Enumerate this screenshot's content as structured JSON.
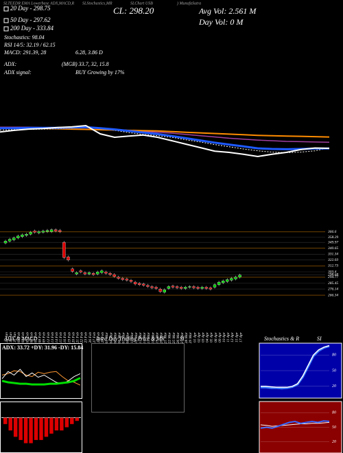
{
  "chart_data": [
    {
      "type": "line",
      "annotations": [
        "SLTEEDR EMA Lowerbase ADX,MACD,R",
        "SLStochastics,MR",
        "SLChart USB",
        ") MunafaSutra",
        "CL: 298.20",
        "Avg Vol: 2.561 M",
        "Day Vol: 0   M",
        "20 Day - 298.75",
        "50 Day - 297.62",
        "200 Day - 333.84",
        "Stochastics: 98.04",
        "RSI 14/5: 32.19 / 62.15",
        "MACD: 291.39, 28",
        "6.28, 3.86  D",
        "ADX:",
        "(MGB) 33.7, 32, 15.8",
        "ADX signal:",
        "BUY Growing by 17%"
      ],
      "ylim": [
        224,
        442
      ],
      "series": [
        {
          "color": "#a040a0",
          "width": 1.5,
          "values": [
            365,
            365,
            365,
            364,
            364,
            363,
            363,
            361,
            358,
            355,
            352,
            349,
            346,
            342,
            338,
            334,
            330,
            327,
            324,
            322,
            320,
            319,
            318,
            317
          ]
        },
        {
          "color": "#ff8c00",
          "width": 2,
          "values": [
            362,
            362,
            361,
            361,
            360,
            359,
            358,
            357,
            356,
            355,
            354,
            353,
            351,
            349,
            347,
            345,
            343,
            341,
            339,
            338,
            337,
            336,
            335,
            333.84
          ]
        },
        {
          "color": "#ffffff",
          "width": 1,
          "dash": true,
          "values": [
            356,
            357,
            358,
            359,
            360,
            362,
            364,
            362,
            355,
            348,
            342,
            338,
            333,
            325,
            318,
            310,
            303,
            296,
            290,
            286,
            284,
            286,
            290,
            298.75
          ]
        },
        {
          "color": "#1e5aff",
          "width": 3,
          "values": [
            362,
            362,
            363,
            363,
            363,
            364,
            365,
            362,
            358,
            353,
            348,
            343,
            337,
            330,
            323,
            316,
            310,
            304,
            298,
            296,
            295,
            296,
            297,
            297.62
          ]
        },
        {
          "color": "#ffffff",
          "width": 2,
          "values": [
            350,
            355,
            359,
            361,
            364,
            366,
            370,
            344,
            333,
            337,
            340,
            333,
            322,
            311,
            300,
            289,
            285,
            279,
            272,
            279,
            285,
            294,
            299,
            298
          ]
        }
      ]
    },
    {
      "type": "candlestick",
      "x": [
        "29 Jan",
        "30 Jan",
        "31 Jan",
        "01 Feb",
        "02 Feb",
        "05 Feb",
        "06 Feb",
        "07 Feb",
        "08 Feb",
        "09 Feb",
        "12 Feb",
        "13 Feb",
        "14 Feb",
        "15 Feb",
        "16 Feb",
        "19 Feb",
        "20 Feb",
        "21 Feb",
        "22 Feb",
        "23 Feb",
        "26 Feb",
        "27 Feb",
        "28 Feb",
        "29 Feb",
        "01 Mar",
        "04 Mar",
        "05 Mar",
        "06 Mar",
        "07 Mar",
        "08 Mar",
        "11 Mar",
        "12 Mar",
        "13 Mar",
        "14 Mar",
        "15 Mar",
        "18 Mar",
        "19 Mar",
        "20 Mar",
        "21 Mar",
        "22 Mar",
        "25 Mar",
        "26 Mar",
        "27 Mar",
        "28 Mar",
        "29 Mar",
        "01 Apr",
        "02 Apr",
        "03 Apr",
        "04 Apr",
        "05 Apr",
        "08 Apr",
        "09 Apr",
        "10 Apr",
        "11 Apr",
        "12 Apr",
        "15 Apr",
        "17 Apr"
      ],
      "open": [
        349,
        352,
        354,
        357,
        359,
        361,
        363,
        368,
        365,
        366,
        367,
        367,
        370,
        369,
        350,
        327,
        308,
        300,
        305,
        302,
        300,
        301,
        300,
        302,
        303,
        301,
        299,
        295,
        293,
        292,
        290,
        287,
        285,
        284,
        282,
        280,
        279,
        276,
        271,
        277,
        281,
        280,
        279,
        277,
        279,
        280,
        279,
        277,
        279,
        278,
        279,
        283,
        286,
        288,
        290,
        292,
        295
      ],
      "close": [
        352,
        355,
        357,
        360,
        362,
        363,
        366,
        366,
        367,
        368,
        369,
        370,
        368,
        367,
        326,
        322,
        304,
        302,
        303,
        300,
        302,
        299,
        303,
        305,
        301,
        299,
        296,
        293,
        291,
        290,
        288,
        284,
        283,
        282,
        280,
        278,
        277,
        272,
        275,
        280,
        279,
        278,
        277,
        279,
        280,
        278,
        277,
        279,
        277,
        276,
        283,
        287,
        289,
        291,
        293,
        295,
        298.2
      ],
      "up_color": "#00cc00",
      "down_color": "#dd0000",
      "ylim": [
        261,
        386
      ],
      "yticks": [
        366.6,
        358.29,
        349.97,
        340.65,
        331.34,
        322.03,
        312.73,
        303.4,
        298.68,
        294.77,
        285.45,
        276.14,
        266.34
      ],
      "grid": true
    },
    {
      "type": "line",
      "title": "ADX & MACD",
      "subtitle": "ADX: 33.72  +DY: 31.96  -DY: 15.84",
      "ylim": [
        0,
        60
      ],
      "series": [
        {
          "color": "#ff9933",
          "width": 1,
          "values": [
            30,
            32,
            36,
            35,
            30,
            28,
            34,
            32,
            34,
            35,
            28,
            22,
            20,
            16
          ]
        },
        {
          "color": "#ffffff",
          "width": 1,
          "values": [
            25,
            35,
            30,
            38,
            28,
            33,
            27,
            30,
            25,
            20,
            18,
            22,
            28,
            32
          ]
        },
        {
          "color": "#00dd00",
          "width": 3,
          "values": [
            22,
            20,
            19,
            18,
            18,
            17,
            17,
            17,
            18,
            18,
            19,
            20,
            22,
            26
          ]
        }
      ]
    },
    {
      "type": "bar",
      "color": "#dd0000",
      "ylim": [
        -10,
        4
      ],
      "values": [
        -2,
        -4,
        -6,
        -7,
        -8,
        -8,
        -7,
        -7,
        -6,
        -5,
        -4,
        -4,
        -3,
        -2,
        -1
      ]
    },
    {
      "type": "line",
      "title": "Stochastics & R",
      "subtitle": "SI",
      "ylim": [
        0,
        100
      ],
      "yticks": [
        20,
        50,
        80
      ],
      "series": [
        {
          "color": "#4080ff",
          "width": 3,
          "values": [
            18,
            18,
            17,
            17,
            16,
            17,
            19,
            24,
            38,
            58,
            78,
            88,
            94,
            97
          ]
        },
        {
          "color": "#ffffff",
          "width": 1.5,
          "values": [
            20,
            20,
            19,
            18,
            18,
            18,
            20,
            25,
            40,
            60,
            80,
            90,
            95,
            98.04
          ]
        }
      ]
    },
    {
      "type": "line",
      "ylim": [
        0,
        100
      ],
      "yticks": [
        20,
        50,
        80
      ],
      "series": [
        {
          "color": "#ffffff",
          "width": 1,
          "values": [
            55,
            54,
            52,
            53,
            54,
            55,
            56,
            57,
            57,
            58,
            58,
            59,
            60
          ]
        },
        {
          "color": "#3366ff",
          "width": 2,
          "values": [
            48,
            50,
            48,
            52,
            56,
            60,
            62,
            58,
            60,
            62,
            60,
            63,
            62.15
          ]
        }
      ]
    },
    {
      "type": "panel",
      "title": "Intra Day Trading Price & MR",
      "subtitle": "SI"
    }
  ]
}
